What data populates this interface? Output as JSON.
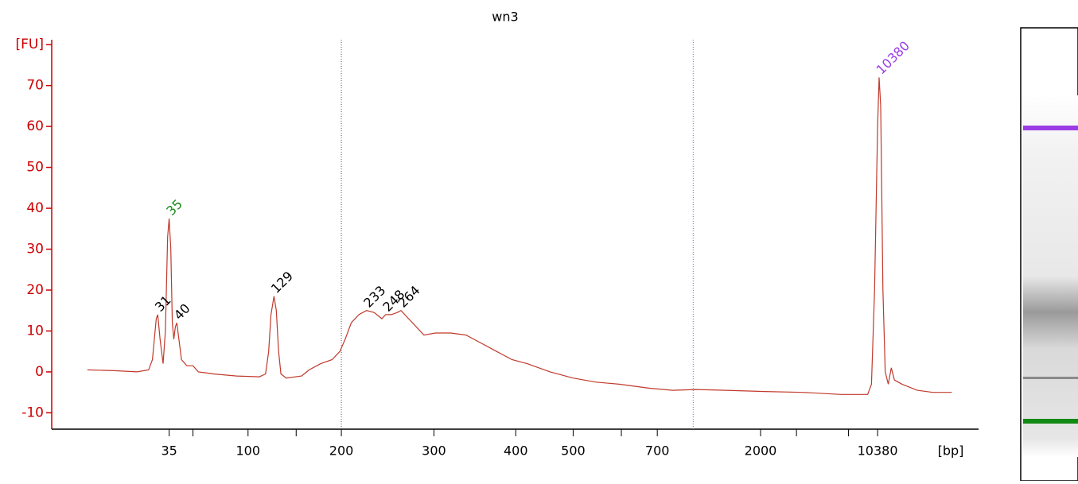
{
  "chart_data": {
    "type": "line",
    "title": "wn3",
    "xlabel": "[bp]",
    "color": "#c0392b",
    "x": [
      0,
      3.0,
      5.58,
      6.87,
      7.3,
      7.73,
      7.9,
      8.16,
      8.5,
      8.76,
      9.01,
      9.18,
      9.36,
      9.53,
      9.7,
      9.87,
      10.04,
      10.21,
      10.56,
      11.16,
      11.85,
      12.45,
      14.16,
      16.74,
      19.31,
      20.0,
      20.34,
      20.6,
      20.94,
      21.2,
      21.46,
      21.72,
      22.32,
      24.04,
      24.89,
      26.18,
      27.47,
      28.33,
      28.93,
      29.61,
      30.47,
      31.33,
      32.19,
      33.05,
      33.48,
      34.08,
      34.76,
      35.19,
      36.05,
      36.91,
      37.77,
      39.06,
      40.77,
      42.49,
      44.21,
      45.92,
      47.64,
      49.35,
      51.93,
      54.5,
      57.08,
      59.66,
      63.09,
      65.67,
      68.24,
      71.68,
      75.97,
      80.26,
      84.55,
      87.56,
      87.98,
      88.33,
      88.67,
      88.84,
      89.02,
      89.27,
      89.53,
      89.87,
      90.21,
      90.56,
      91.41,
      93.13,
      94.85,
      97.0
    ],
    "values": [
      0.5,
      0.3,
      0,
      0.5,
      3,
      13,
      14,
      8,
      2,
      10,
      33,
      37.5,
      30,
      12,
      8,
      11,
      12,
      9,
      3,
      1.5,
      1.5,
      0,
      -0.5,
      -1,
      -1.2,
      -0.5,
      5,
      14,
      18.5,
      15,
      5,
      -0.5,
      -1.5,
      -1,
      0.5,
      2,
      3,
      5,
      8,
      12,
      14,
      15,
      14.5,
      13,
      14,
      14,
      14.5,
      15,
      13,
      11,
      9,
      9.5,
      9.5,
      9,
      7,
      5,
      3,
      2,
      0,
      -1.5,
      -2.5,
      -3,
      -4,
      -4.5,
      -4.3,
      -4.5,
      -4.8,
      -5,
      -5.5,
      -5.5,
      -3,
      20,
      60,
      72,
      65,
      20,
      0,
      -3,
      1,
      -2,
      -3,
      -4.5,
      -5,
      -5
    ],
    "xlim": [
      -4,
      100
    ],
    "ylim": [
      -14,
      81.2
    ],
    "yticks": [
      {
        "value": 80,
        "label": "[FU]"
      },
      70,
      60,
      50,
      40,
      30,
      20,
      10,
      0,
      -10
    ],
    "xticks": [
      {
        "value": 9.18,
        "label": "35"
      },
      {
        "value": 18.03,
        "label": "100"
      },
      {
        "value": 28.5,
        "label": "200"
      },
      {
        "value": 38.89,
        "label": "300"
      },
      {
        "value": 48.07,
        "label": "400"
      },
      {
        "value": 54.51,
        "label": "500"
      },
      {
        "value": 63.95,
        "label": "700"
      },
      {
        "value": 75.54,
        "label": "2000"
      },
      {
        "value": 88.67,
        "label": "10380"
      }
    ],
    "xminor_ticks": [
      11.85,
      23.43,
      59.92,
      79.57,
      85.41
    ],
    "markers": [
      28.5,
      67.98
    ],
    "peaks": [
      {
        "label": "31",
        "x": 7.9,
        "y": 14,
        "color": "#000000"
      },
      {
        "label": "35",
        "x": 9.18,
        "y": 37.5,
        "color": "#1a8a1a"
      },
      {
        "label": "40",
        "x": 10.04,
        "y": 12,
        "color": "#000000"
      },
      {
        "label": "129",
        "x": 20.94,
        "y": 18.5,
        "color": "#000000"
      },
      {
        "label": "233",
        "x": 31.33,
        "y": 15,
        "color": "#000000"
      },
      {
        "label": "248",
        "x": 33.48,
        "y": 14,
        "color": "#000000"
      },
      {
        "label": "264",
        "x": 35.19,
        "y": 15,
        "color": "#000000"
      },
      {
        "label": "10380",
        "x": 88.84,
        "y": 72,
        "color": "#9b3de6"
      }
    ]
  }
}
